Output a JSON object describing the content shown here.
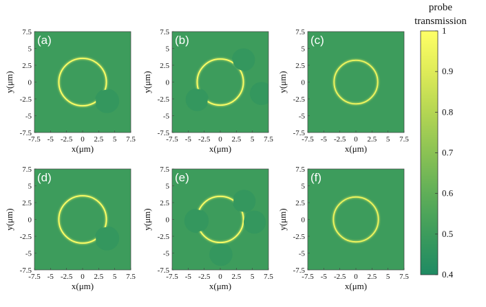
{
  "chart_data": {
    "type": "heatmap",
    "colorbar": {
      "title_line1": "probe",
      "title_line2": "transmission",
      "range": [
        0.4,
        1.0
      ],
      "ticks": [
        "1",
        "0.9",
        "0.8",
        "0.7",
        "0.6",
        "0.5",
        "0.4"
      ],
      "colors": [
        "#1f8a63",
        "#3d9c5c",
        "#5fae58",
        "#8bc254",
        "#b5d653",
        "#deeb58",
        "#ffff66"
      ]
    },
    "axes": {
      "xlabel": "x(μm)",
      "ylabel": "y(μm)",
      "xlim": [
        -7.5,
        7.5
      ],
      "ylim": [
        -7.5,
        7.5
      ],
      "xticks": [
        "-7.5",
        "-5",
        "-2.5",
        "0",
        "2.5",
        "5",
        "7.5"
      ],
      "yticks": [
        "7.5",
        "5",
        "2.5",
        "0",
        "-2.5",
        "-5",
        "-7.5"
      ]
    },
    "panels": [
      {
        "label": "(a)",
        "background": 0.5,
        "ring": {
          "cx": 0,
          "cy": 0,
          "r": 3.7,
          "value": 1.0
        },
        "blobs": [
          {
            "cx": 3.8,
            "cy": -2.8,
            "r": 1.9
          }
        ]
      },
      {
        "label": "(b)",
        "background": 0.5,
        "ring": {
          "cx": 0,
          "cy": 0,
          "r": 3.6,
          "value": 1.0
        },
        "blobs": [
          {
            "cx": 3.6,
            "cy": 3.3,
            "r": 1.8
          },
          {
            "cx": -3.6,
            "cy": -2.6,
            "r": 1.8
          },
          {
            "cx": 6.4,
            "cy": -1.7,
            "r": 1.8
          }
        ]
      },
      {
        "label": "(c)",
        "background": 0.5,
        "ring": {
          "cx": 0,
          "cy": 0,
          "r": 3.4,
          "value": 0.95
        },
        "blobs": []
      },
      {
        "label": "(d)",
        "background": 0.5,
        "ring": {
          "cx": 0,
          "cy": 0,
          "r": 3.7,
          "value": 1.0
        },
        "blobs": [
          {
            "cx": 3.8,
            "cy": -2.8,
            "r": 1.9
          }
        ]
      },
      {
        "label": "(e)",
        "background": 0.5,
        "ring": {
          "cx": 0,
          "cy": 0,
          "r": 3.6,
          "value": 1.0
        },
        "blobs": [
          {
            "cx": 3.7,
            "cy": 2.7,
            "r": 1.8
          },
          {
            "cx": -3.7,
            "cy": -0.2,
            "r": 1.9
          },
          {
            "cx": 5.3,
            "cy": -0.4,
            "r": 1.8
          },
          {
            "cx": 0.1,
            "cy": -5.2,
            "r": 1.8
          }
        ]
      },
      {
        "label": "(f)",
        "background": 0.5,
        "ring": {
          "cx": 0,
          "cy": 0,
          "r": 3.5,
          "value": 0.95
        },
        "blobs": []
      }
    ]
  }
}
